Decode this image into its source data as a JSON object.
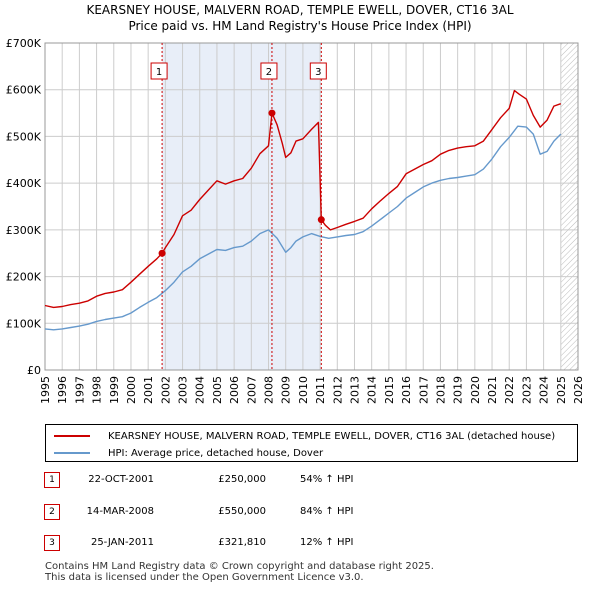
{
  "title_line1": "KEARSNEY HOUSE, MALVERN ROAD, TEMPLE EWELL, DOVER, CT16 3AL",
  "title_line2": "Price paid vs. HM Land Registry's House Price Index (HPI)",
  "colors": {
    "property": "#cc0000",
    "hpi": "#6699cc",
    "grid": "#cccccc",
    "shade": "#e8eef8"
  },
  "legend": {
    "property_label": "KEARSNEY HOUSE, MALVERN ROAD, TEMPLE EWELL, DOVER, CT16 3AL (detached house)",
    "hpi_label": "HPI: Average price, detached house, Dover"
  },
  "sales": [
    {
      "num": "1",
      "date": "22-OCT-2001",
      "price": "£250,000",
      "hpi": "54% ↑ HPI"
    },
    {
      "num": "2",
      "date": "14-MAR-2008",
      "price": "£550,000",
      "hpi": "84% ↑ HPI"
    },
    {
      "num": "3",
      "date": "25-JAN-2011",
      "price": "£321,810",
      "hpi": "12% ↑ HPI"
    }
  ],
  "footer_line1": "Contains HM Land Registry data © Crown copyright and database right 2025.",
  "footer_line2": "This data is licensed under the Open Government Licence v3.0.",
  "chart_data": {
    "type": "line",
    "title": "KEARSNEY HOUSE, MALVERN ROAD, TEMPLE EWELL, DOVER, CT16 3AL",
    "subtitle": "Price paid vs. HM Land Registry's House Price Index (HPI)",
    "xlabel": "",
    "ylabel": "",
    "xlim": [
      1995,
      2026
    ],
    "ylim": [
      0,
      700000
    ],
    "x_ticks": [
      1995,
      1996,
      1997,
      1998,
      1999,
      2000,
      2001,
      2002,
      2003,
      2004,
      2005,
      2006,
      2007,
      2008,
      2009,
      2010,
      2011,
      2012,
      2013,
      2014,
      2015,
      2016,
      2017,
      2018,
      2019,
      2020,
      2021,
      2022,
      2023,
      2024,
      2025,
      2026
    ],
    "y_ticks": [
      {
        "value": 0,
        "label": "£0"
      },
      {
        "value": 100000,
        "label": "£100K"
      },
      {
        "value": 200000,
        "label": "£200K"
      },
      {
        "value": 300000,
        "label": "£300K"
      },
      {
        "value": 400000,
        "label": "£400K"
      },
      {
        "value": 500000,
        "label": "£500K"
      },
      {
        "value": 600000,
        "label": "£600K"
      },
      {
        "value": 700000,
        "label": "£700K"
      }
    ],
    "shaded_ranges": [
      [
        2001.81,
        2008.2
      ],
      [
        2008.2,
        2011.07
      ]
    ],
    "hatched_future_from": 2025.0,
    "series": [
      {
        "name": "KEARSNEY HOUSE, MALVERN ROAD, TEMPLE EWELL, DOVER, CT16 3AL (detached house)",
        "color": "#cc0000",
        "x": [
          1995.0,
          1995.5,
          1996.0,
          1996.5,
          1997.0,
          1997.5,
          1998.0,
          1998.5,
          1999.0,
          1999.5,
          2000.0,
          2000.5,
          2001.0,
          2001.5,
          2001.81,
          2002.0,
          2002.5,
          2003.0,
          2003.5,
          2004.0,
          2004.5,
          2005.0,
          2005.5,
          2006.0,
          2006.5,
          2007.0,
          2007.5,
          2008.0,
          2008.2,
          2008.5,
          2008.8,
          2009.0,
          2009.3,
          2009.6,
          2010.0,
          2010.5,
          2010.9,
          2011.07,
          2011.3,
          2011.6,
          2012.0,
          2012.5,
          2013.0,
          2013.5,
          2014.0,
          2014.5,
          2015.0,
          2015.5,
          2016.0,
          2016.5,
          2017.0,
          2017.5,
          2018.0,
          2018.5,
          2019.0,
          2019.5,
          2020.0,
          2020.5,
          2021.0,
          2021.5,
          2022.0,
          2022.3,
          2022.6,
          2023.0,
          2023.4,
          2023.8,
          2024.2,
          2024.6,
          2025.0
        ],
        "y": [
          138000,
          134000,
          136000,
          140000,
          143000,
          148000,
          158000,
          164000,
          167000,
          172000,
          188000,
          205000,
          222000,
          238000,
          250000,
          262000,
          290000,
          330000,
          342000,
          365000,
          385000,
          405000,
          398000,
          405000,
          410000,
          432000,
          463000,
          480000,
          550000,
          525000,
          485000,
          455000,
          465000,
          490000,
          495000,
          515000,
          530000,
          321810,
          310000,
          300000,
          305000,
          312000,
          318000,
          325000,
          345000,
          362000,
          378000,
          393000,
          420000,
          430000,
          440000,
          448000,
          462000,
          470000,
          475000,
          478000,
          480000,
          490000,
          515000,
          540000,
          560000,
          598000,
          590000,
          580000,
          545000,
          520000,
          535000,
          565000,
          570000
        ]
      },
      {
        "name": "HPI: Average price, detached house, Dover",
        "color": "#6699cc",
        "x": [
          1995.0,
          1995.5,
          1996.0,
          1996.5,
          1997.0,
          1997.5,
          1998.0,
          1998.5,
          1999.0,
          1999.5,
          2000.0,
          2000.5,
          2001.0,
          2001.5,
          2002.0,
          2002.5,
          2003.0,
          2003.5,
          2004.0,
          2004.5,
          2005.0,
          2005.5,
          2006.0,
          2006.5,
          2007.0,
          2007.5,
          2008.0,
          2008.5,
          2009.0,
          2009.3,
          2009.6,
          2010.0,
          2010.5,
          2011.0,
          2011.5,
          2012.0,
          2012.5,
          2013.0,
          2013.5,
          2014.0,
          2014.5,
          2015.0,
          2015.5,
          2016.0,
          2016.5,
          2017.0,
          2017.5,
          2018.0,
          2018.5,
          2019.0,
          2019.5,
          2020.0,
          2020.5,
          2021.0,
          2021.5,
          2022.0,
          2022.5,
          2023.0,
          2023.4,
          2023.8,
          2024.2,
          2024.6,
          2025.0
        ],
        "y": [
          88000,
          86000,
          88000,
          91000,
          94000,
          98000,
          104000,
          108000,
          111000,
          114000,
          122000,
          134000,
          145000,
          155000,
          170000,
          188000,
          210000,
          222000,
          238000,
          248000,
          258000,
          256000,
          262000,
          265000,
          276000,
          292000,
          300000,
          282000,
          252000,
          262000,
          276000,
          285000,
          292000,
          286000,
          282000,
          285000,
          288000,
          290000,
          296000,
          308000,
          322000,
          336000,
          350000,
          368000,
          380000,
          392000,
          400000,
          406000,
          410000,
          412000,
          415000,
          418000,
          430000,
          452000,
          478000,
          498000,
          522000,
          520000,
          505000,
          462000,
          468000,
          490000,
          505000
        ]
      }
    ],
    "sale_markers": [
      {
        "label": "1",
        "x": 2001.81,
        "y": 250000
      },
      {
        "label": "2",
        "x": 2008.2,
        "y": 550000
      },
      {
        "label": "3",
        "x": 2011.07,
        "y": 321810
      }
    ]
  }
}
